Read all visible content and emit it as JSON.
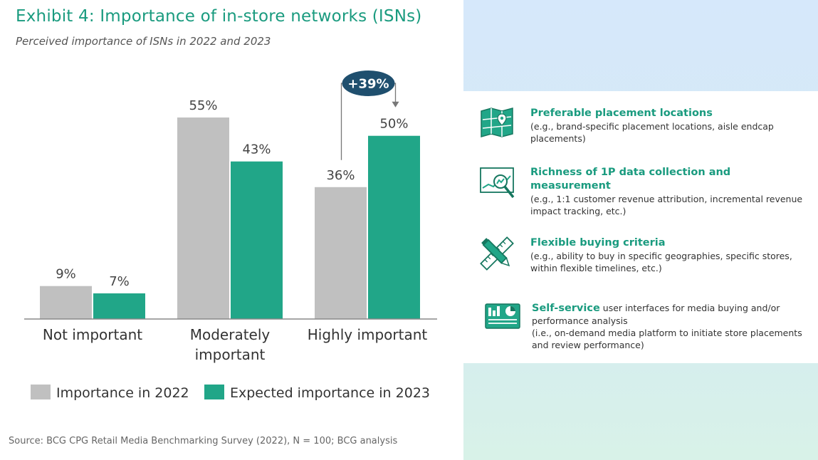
{
  "title": "Exhibit 4: Importance of in-store networks (ISNs)",
  "subtitle": "Perceived importance of ISNs in 2022 and 2023",
  "source": "Source: BCG CPG Retail Media Benchmarking Survey (2022), N = 100; BCG analysis",
  "colors": {
    "series_2022": "#c0c0c0",
    "series_2023": "#21a688",
    "accent": "#1a9b7f",
    "callout": "#1f4f6e"
  },
  "chart_data": {
    "type": "bar",
    "categories": [
      [
        "Not important"
      ],
      [
        "Moderately",
        "important"
      ],
      [
        "Highly important"
      ]
    ],
    "series": [
      {
        "name": "Importance in 2022",
        "values": [
          9,
          55,
          36
        ],
        "labels": [
          "9%",
          "55%",
          "36%"
        ]
      },
      {
        "name": "Expected importance in 2023",
        "values": [
          7,
          43,
          50
        ],
        "labels": [
          "7%",
          "43%",
          "50%"
        ]
      }
    ],
    "ylim": [
      0,
      55
    ],
    "callout": {
      "category_index": 2,
      "label": "+39%"
    },
    "legend_placement": "bottom"
  },
  "features": [
    {
      "icon": "map-icon",
      "heading": "Preferable placement locations",
      "body": "(e.g., brand-specific placement locations, aisle endcap placements)"
    },
    {
      "icon": "magnifier-chart-icon",
      "heading": "Richness of 1P data collection and measurement",
      "body": "(e.g., 1:1 customer revenue attribution, incremental revenue impact tracking, etc.)"
    },
    {
      "icon": "pencil-ruler-icon",
      "heading": "Flexible buying criteria",
      "body": "(e.g., ability to buy in specific geographies, specific stores, within flexible timelines, etc.)"
    },
    {
      "icon": "dashboard-screen-icon",
      "heading": "Self-service",
      "heading_suffix": " user interfaces for media buying and/or performance analysis",
      "body": "(i.e., on-demand media platform to initiate store placements and review performance)"
    }
  ]
}
